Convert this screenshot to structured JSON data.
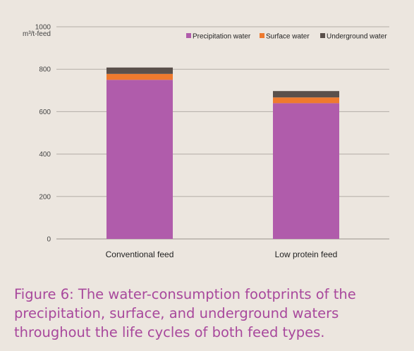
{
  "chart_data": {
    "type": "bar",
    "stacked": true,
    "categories": [
      "Conventional feed",
      "Low protein feed"
    ],
    "series": [
      {
        "name": "Precipitation water",
        "values": [
          750,
          640
        ],
        "color": "#b05cab"
      },
      {
        "name": "Surface water",
        "values": [
          28,
          27
        ],
        "color": "#ee7a2e"
      },
      {
        "name": "Underground water",
        "values": [
          30,
          30
        ],
        "color": "#5a504b"
      }
    ],
    "yticks": [
      0,
      200,
      400,
      600,
      800,
      1000
    ],
    "ylim": [
      0,
      1000
    ],
    "ylabel": "m³/t-feed",
    "grid": true,
    "legend_position": "top-right"
  },
  "caption": "Figure 6: The water-consumption footprints of the precipitation, surface, and underground waters throughout the life cycles of both feed types."
}
